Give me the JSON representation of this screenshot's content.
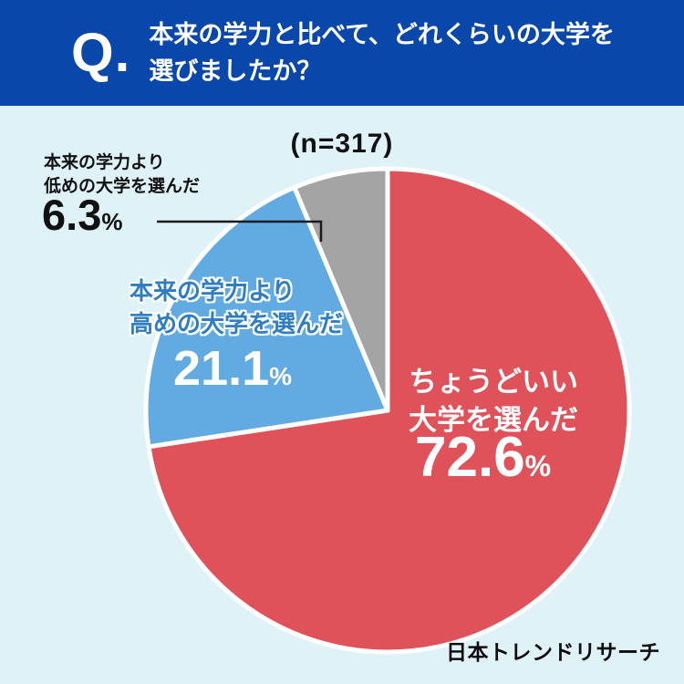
{
  "header": {
    "q_label": "Q.",
    "question_line1": "本来の学力と比べて、どれくらいの大学を",
    "question_line2": "選びましたか？"
  },
  "chart_data": {
    "type": "pie",
    "sample_label": "(n=317)",
    "n": 317,
    "start_angle": "top",
    "direction": "clockwise",
    "legend_position": "inside-and-callout",
    "slices": [
      {
        "label": "ちょうどいい大学を選んだ",
        "value": 72.6,
        "color": "#e0525a"
      },
      {
        "label": "本来の学力より高めの大学を選んだ",
        "value": 21.1,
        "color": "#61abe2"
      },
      {
        "label": "本来の学力より低めの大学を選んだ",
        "value": 6.3,
        "color": "#a4a4a4"
      }
    ]
  },
  "labels": {
    "percent_sign": "%",
    "red": {
      "line1": "ちょうどいい",
      "line2": "大学を選んだ"
    },
    "blue": {
      "line1": "本来の学力より",
      "line2": "高めの大学を選んだ"
    },
    "gray": {
      "line1": "本来の学力より",
      "line2": "低めの大学を選んだ"
    }
  },
  "footer": {
    "brand": "日本トレンドリサーチ"
  }
}
